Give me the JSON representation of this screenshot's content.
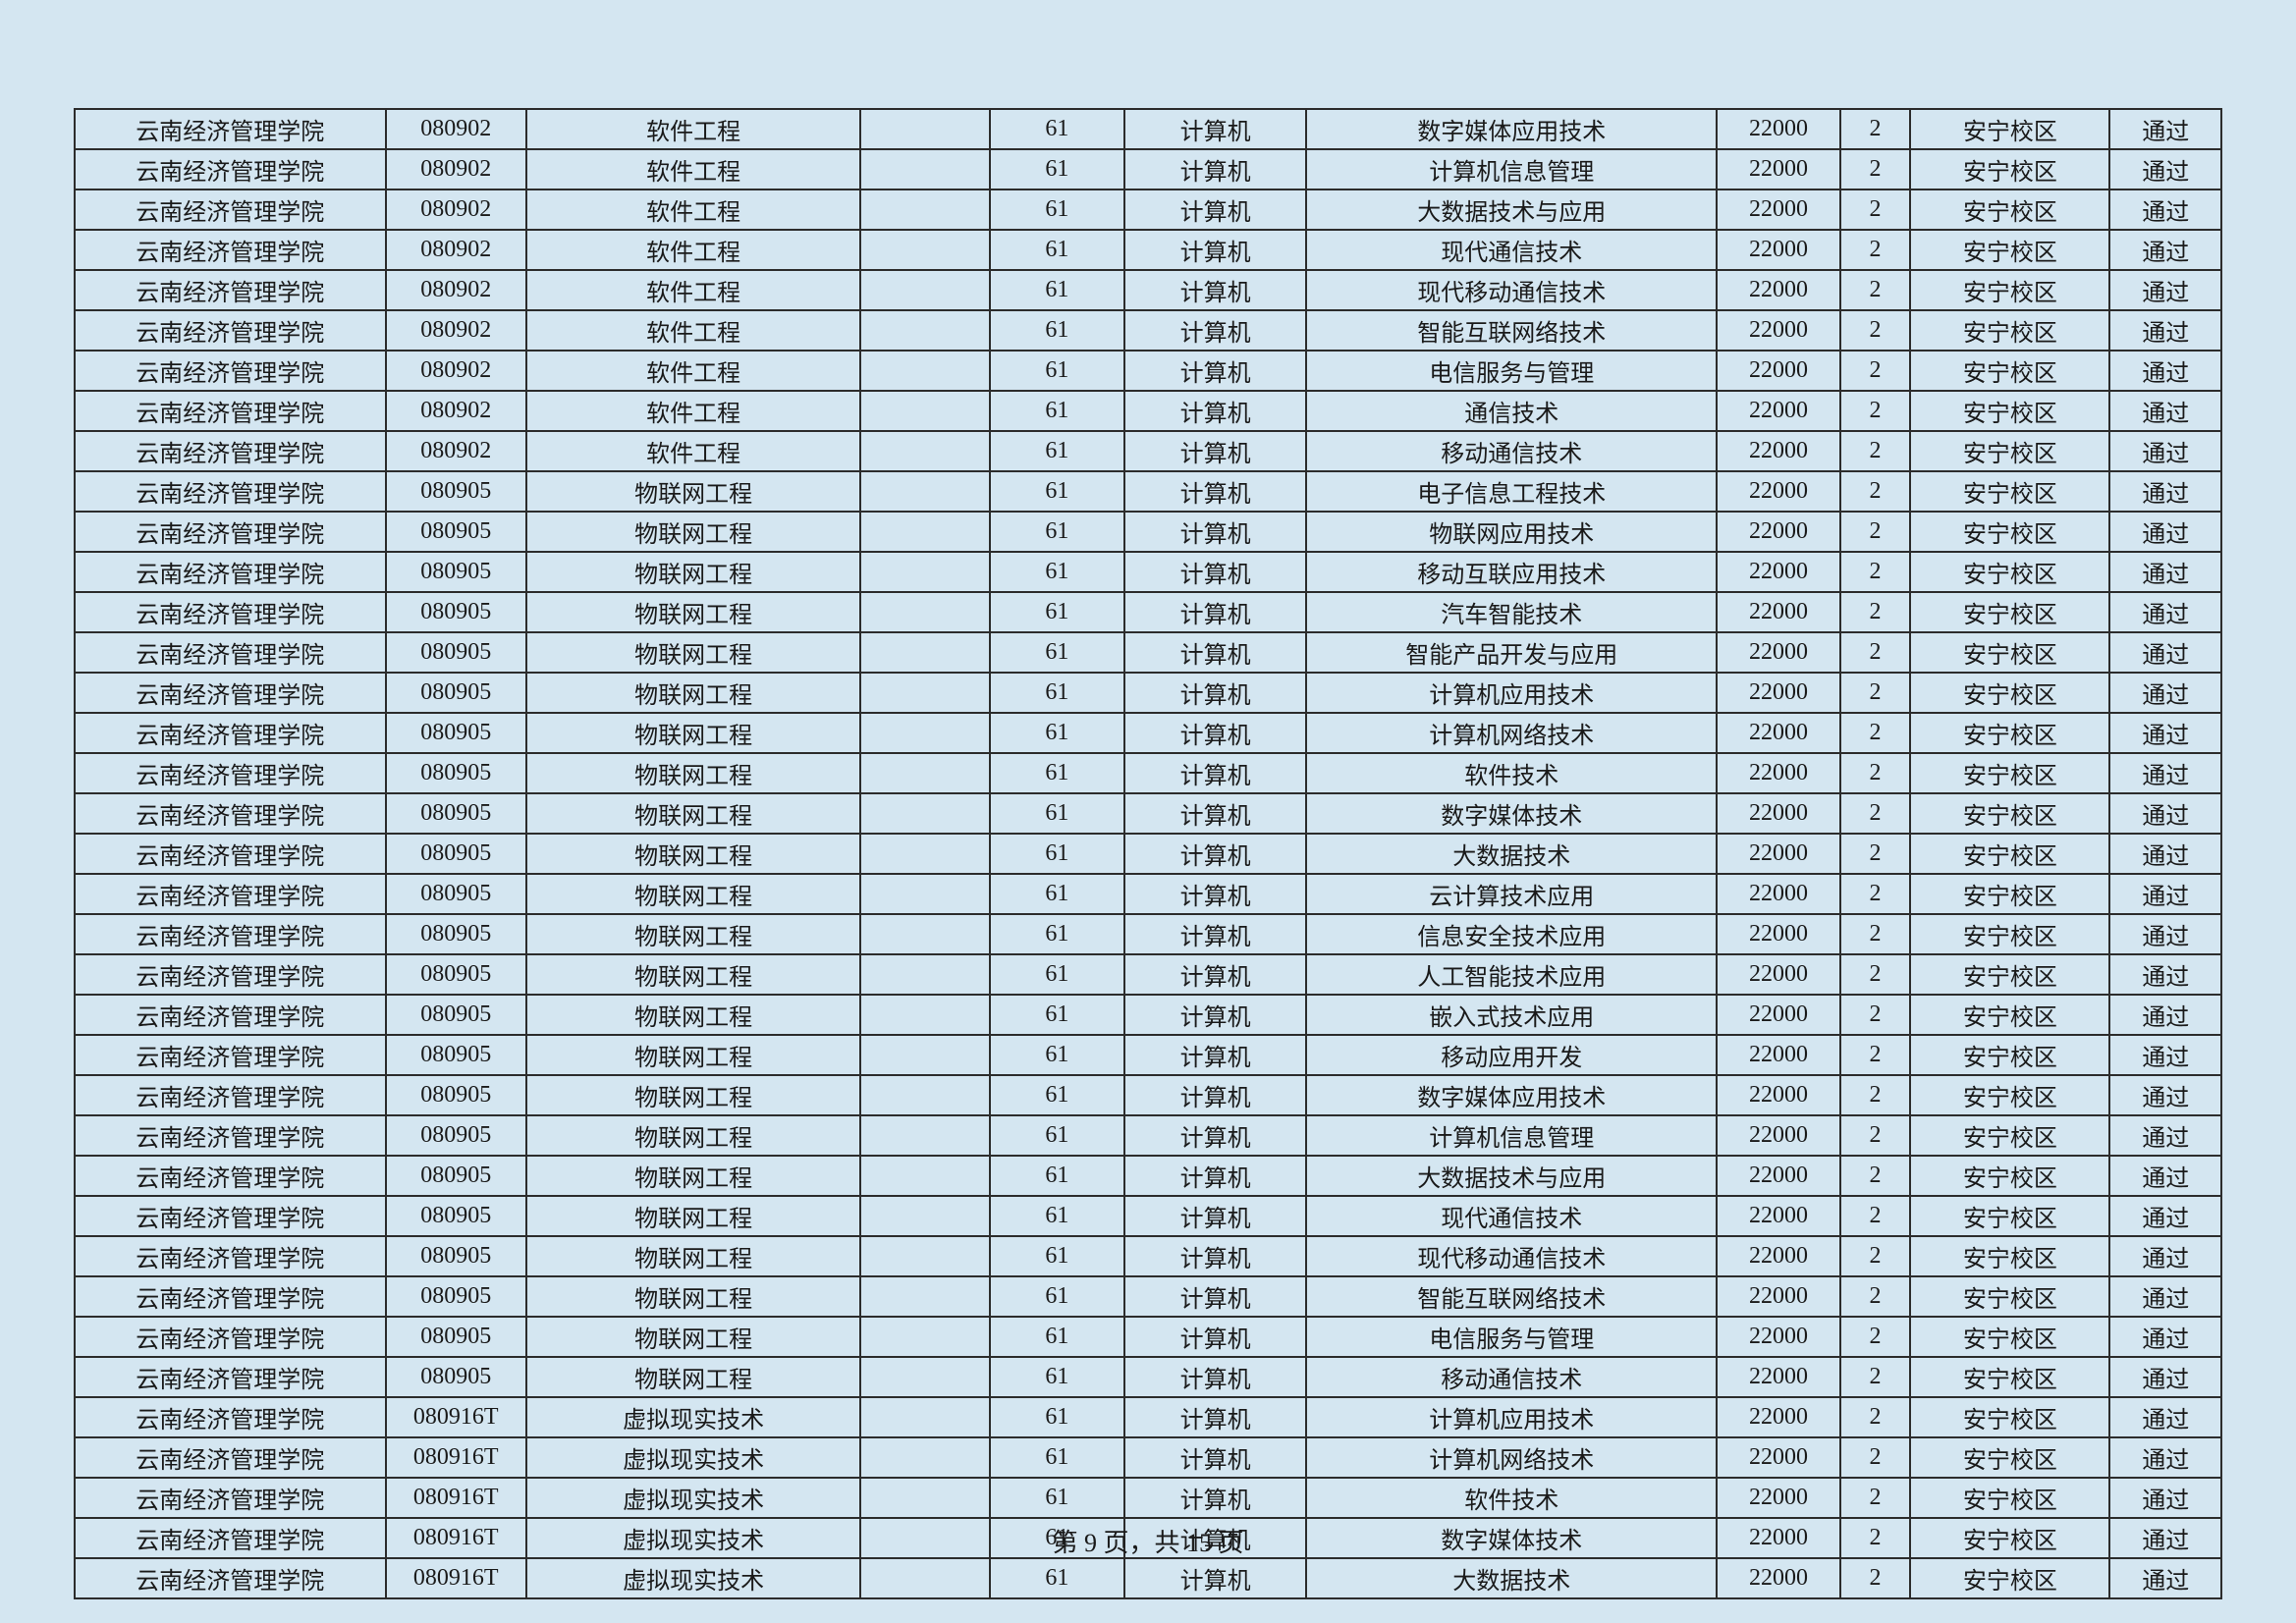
{
  "table": {
    "columns": [
      "school",
      "code",
      "major",
      "empty",
      "num",
      "category",
      "specialty",
      "tuition",
      "years",
      "campus",
      "status"
    ],
    "column_widths": [
      "265px",
      "120px",
      "285px",
      "110px",
      "115px",
      "155px",
      "350px",
      "105px",
      "60px",
      "170px",
      "95px"
    ],
    "background_color": "#d4e6f1",
    "border_color": "#2c2c2c",
    "text_color": "#1a1a1a",
    "font_size": 24,
    "rows": [
      [
        "云南经济管理学院",
        "080902",
        "软件工程",
        "",
        "61",
        "计算机",
        "数字媒体应用技术",
        "22000",
        "2",
        "安宁校区",
        "通过"
      ],
      [
        "云南经济管理学院",
        "080902",
        "软件工程",
        "",
        "61",
        "计算机",
        "计算机信息管理",
        "22000",
        "2",
        "安宁校区",
        "通过"
      ],
      [
        "云南经济管理学院",
        "080902",
        "软件工程",
        "",
        "61",
        "计算机",
        "大数据技术与应用",
        "22000",
        "2",
        "安宁校区",
        "通过"
      ],
      [
        "云南经济管理学院",
        "080902",
        "软件工程",
        "",
        "61",
        "计算机",
        "现代通信技术",
        "22000",
        "2",
        "安宁校区",
        "通过"
      ],
      [
        "云南经济管理学院",
        "080902",
        "软件工程",
        "",
        "61",
        "计算机",
        "现代移动通信技术",
        "22000",
        "2",
        "安宁校区",
        "通过"
      ],
      [
        "云南经济管理学院",
        "080902",
        "软件工程",
        "",
        "61",
        "计算机",
        "智能互联网络技术",
        "22000",
        "2",
        "安宁校区",
        "通过"
      ],
      [
        "云南经济管理学院",
        "080902",
        "软件工程",
        "",
        "61",
        "计算机",
        "电信服务与管理",
        "22000",
        "2",
        "安宁校区",
        "通过"
      ],
      [
        "云南经济管理学院",
        "080902",
        "软件工程",
        "",
        "61",
        "计算机",
        "通信技术",
        "22000",
        "2",
        "安宁校区",
        "通过"
      ],
      [
        "云南经济管理学院",
        "080902",
        "软件工程",
        "",
        "61",
        "计算机",
        "移动通信技术",
        "22000",
        "2",
        "安宁校区",
        "通过"
      ],
      [
        "云南经济管理学院",
        "080905",
        "物联网工程",
        "",
        "61",
        "计算机",
        "电子信息工程技术",
        "22000",
        "2",
        "安宁校区",
        "通过"
      ],
      [
        "云南经济管理学院",
        "080905",
        "物联网工程",
        "",
        "61",
        "计算机",
        "物联网应用技术",
        "22000",
        "2",
        "安宁校区",
        "通过"
      ],
      [
        "云南经济管理学院",
        "080905",
        "物联网工程",
        "",
        "61",
        "计算机",
        "移动互联应用技术",
        "22000",
        "2",
        "安宁校区",
        "通过"
      ],
      [
        "云南经济管理学院",
        "080905",
        "物联网工程",
        "",
        "61",
        "计算机",
        "汽车智能技术",
        "22000",
        "2",
        "安宁校区",
        "通过"
      ],
      [
        "云南经济管理学院",
        "080905",
        "物联网工程",
        "",
        "61",
        "计算机",
        "智能产品开发与应用",
        "22000",
        "2",
        "安宁校区",
        "通过"
      ],
      [
        "云南经济管理学院",
        "080905",
        "物联网工程",
        "",
        "61",
        "计算机",
        "计算机应用技术",
        "22000",
        "2",
        "安宁校区",
        "通过"
      ],
      [
        "云南经济管理学院",
        "080905",
        "物联网工程",
        "",
        "61",
        "计算机",
        "计算机网络技术",
        "22000",
        "2",
        "安宁校区",
        "通过"
      ],
      [
        "云南经济管理学院",
        "080905",
        "物联网工程",
        "",
        "61",
        "计算机",
        "软件技术",
        "22000",
        "2",
        "安宁校区",
        "通过"
      ],
      [
        "云南经济管理学院",
        "080905",
        "物联网工程",
        "",
        "61",
        "计算机",
        "数字媒体技术",
        "22000",
        "2",
        "安宁校区",
        "通过"
      ],
      [
        "云南经济管理学院",
        "080905",
        "物联网工程",
        "",
        "61",
        "计算机",
        "大数据技术",
        "22000",
        "2",
        "安宁校区",
        "通过"
      ],
      [
        "云南经济管理学院",
        "080905",
        "物联网工程",
        "",
        "61",
        "计算机",
        "云计算技术应用",
        "22000",
        "2",
        "安宁校区",
        "通过"
      ],
      [
        "云南经济管理学院",
        "080905",
        "物联网工程",
        "",
        "61",
        "计算机",
        "信息安全技术应用",
        "22000",
        "2",
        "安宁校区",
        "通过"
      ],
      [
        "云南经济管理学院",
        "080905",
        "物联网工程",
        "",
        "61",
        "计算机",
        "人工智能技术应用",
        "22000",
        "2",
        "安宁校区",
        "通过"
      ],
      [
        "云南经济管理学院",
        "080905",
        "物联网工程",
        "",
        "61",
        "计算机",
        "嵌入式技术应用",
        "22000",
        "2",
        "安宁校区",
        "通过"
      ],
      [
        "云南经济管理学院",
        "080905",
        "物联网工程",
        "",
        "61",
        "计算机",
        "移动应用开发",
        "22000",
        "2",
        "安宁校区",
        "通过"
      ],
      [
        "云南经济管理学院",
        "080905",
        "物联网工程",
        "",
        "61",
        "计算机",
        "数字媒体应用技术",
        "22000",
        "2",
        "安宁校区",
        "通过"
      ],
      [
        "云南经济管理学院",
        "080905",
        "物联网工程",
        "",
        "61",
        "计算机",
        "计算机信息管理",
        "22000",
        "2",
        "安宁校区",
        "通过"
      ],
      [
        "云南经济管理学院",
        "080905",
        "物联网工程",
        "",
        "61",
        "计算机",
        "大数据技术与应用",
        "22000",
        "2",
        "安宁校区",
        "通过"
      ],
      [
        "云南经济管理学院",
        "080905",
        "物联网工程",
        "",
        "61",
        "计算机",
        "现代通信技术",
        "22000",
        "2",
        "安宁校区",
        "通过"
      ],
      [
        "云南经济管理学院",
        "080905",
        "物联网工程",
        "",
        "61",
        "计算机",
        "现代移动通信技术",
        "22000",
        "2",
        "安宁校区",
        "通过"
      ],
      [
        "云南经济管理学院",
        "080905",
        "物联网工程",
        "",
        "61",
        "计算机",
        "智能互联网络技术",
        "22000",
        "2",
        "安宁校区",
        "通过"
      ],
      [
        "云南经济管理学院",
        "080905",
        "物联网工程",
        "",
        "61",
        "计算机",
        "电信服务与管理",
        "22000",
        "2",
        "安宁校区",
        "通过"
      ],
      [
        "云南经济管理学院",
        "080905",
        "物联网工程",
        "",
        "61",
        "计算机",
        "移动通信技术",
        "22000",
        "2",
        "安宁校区",
        "通过"
      ],
      [
        "云南经济管理学院",
        "080916T",
        "虚拟现实技术",
        "",
        "61",
        "计算机",
        "计算机应用技术",
        "22000",
        "2",
        "安宁校区",
        "通过"
      ],
      [
        "云南经济管理学院",
        "080916T",
        "虚拟现实技术",
        "",
        "61",
        "计算机",
        "计算机网络技术",
        "22000",
        "2",
        "安宁校区",
        "通过"
      ],
      [
        "云南经济管理学院",
        "080916T",
        "虚拟现实技术",
        "",
        "61",
        "计算机",
        "软件技术",
        "22000",
        "2",
        "安宁校区",
        "通过"
      ],
      [
        "云南经济管理学院",
        "080916T",
        "虚拟现实技术",
        "",
        "61",
        "计算机",
        "数字媒体技术",
        "22000",
        "2",
        "安宁校区",
        "通过"
      ],
      [
        "云南经济管理学院",
        "080916T",
        "虚拟现实技术",
        "",
        "61",
        "计算机",
        "大数据技术",
        "22000",
        "2",
        "安宁校区",
        "通过"
      ]
    ]
  },
  "footer": {
    "page_text": "第 9 页，共 15 页"
  }
}
